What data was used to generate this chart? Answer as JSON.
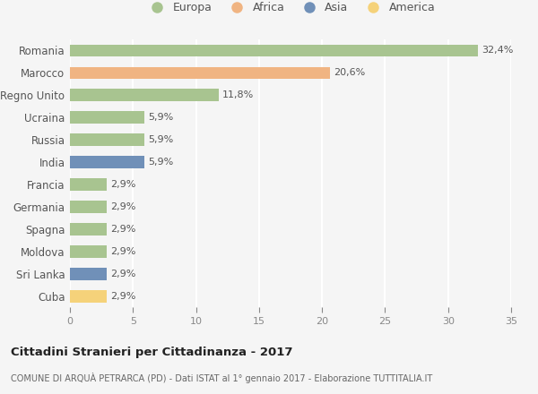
{
  "categories": [
    "Romania",
    "Marocco",
    "Regno Unito",
    "Ucraina",
    "Russia",
    "India",
    "Francia",
    "Germania",
    "Spagna",
    "Moldova",
    "Sri Lanka",
    "Cuba"
  ],
  "values": [
    32.4,
    20.6,
    11.8,
    5.9,
    5.9,
    5.9,
    2.9,
    2.9,
    2.9,
    2.9,
    2.9,
    2.9
  ],
  "labels": [
    "32,4%",
    "20,6%",
    "11,8%",
    "5,9%",
    "5,9%",
    "5,9%",
    "2,9%",
    "2,9%",
    "2,9%",
    "2,9%",
    "2,9%",
    "2,9%"
  ],
  "colors": [
    "#a8c490",
    "#f0b482",
    "#a8c490",
    "#a8c490",
    "#a8c490",
    "#7090b8",
    "#a8c490",
    "#a8c490",
    "#a8c490",
    "#a8c490",
    "#7090b8",
    "#f5d27a"
  ],
  "continent_colors": {
    "Europa": "#a8c490",
    "Africa": "#f0b482",
    "Asia": "#7090b8",
    "America": "#f5d27a"
  },
  "legend_labels": [
    "Europa",
    "Africa",
    "Asia",
    "America"
  ],
  "xlim": [
    0,
    35
  ],
  "xticks": [
    0,
    5,
    10,
    15,
    20,
    25,
    30,
    35
  ],
  "title": "Cittadini Stranieri per Cittadinanza - 2017",
  "subtitle": "COMUNE DI ARQUÀ PETRARCA (PD) - Dati ISTAT al 1° gennaio 2017 - Elaborazione TUTTITALIA.IT",
  "background_color": "#f5f5f5",
  "grid_color": "#ffffff",
  "bar_height": 0.55,
  "label_fontsize": 8.0,
  "ytick_fontsize": 8.5,
  "xtick_fontsize": 8.0
}
